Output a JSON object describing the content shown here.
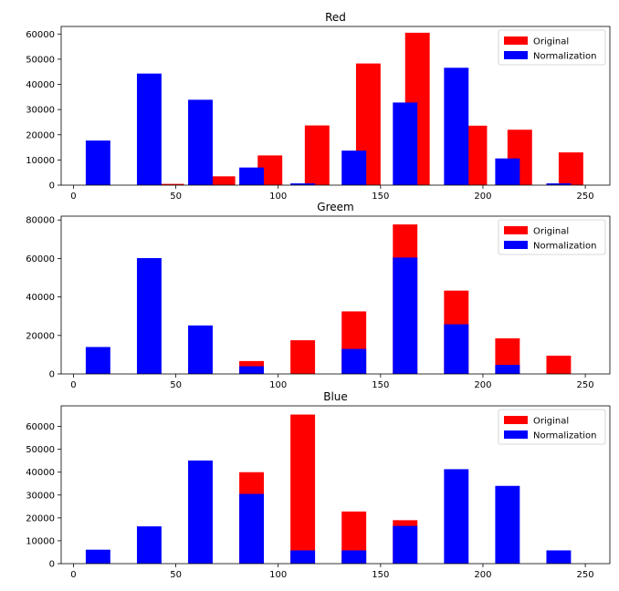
{
  "chart_data": [
    {
      "type": "bar",
      "title": "Red",
      "xlabel": "",
      "ylabel": "",
      "xlim": [
        -6,
        262
      ],
      "ylim": [
        0,
        63000
      ],
      "xticks": [
        0,
        50,
        100,
        150,
        200,
        250
      ],
      "yticks": [
        0,
        10000,
        20000,
        30000,
        40000,
        50000,
        60000
      ],
      "bar_width": 12,
      "legend": {
        "position": "top-right",
        "entries": [
          "Original",
          "Normalization"
        ]
      },
      "series": [
        {
          "name": "Original",
          "color": "#ff0000",
          "x": [
            12,
            48,
            73,
            96,
            119,
            144,
            168,
            196,
            218,
            243
          ],
          "values": [
            0,
            500,
            3500,
            11800,
            23700,
            48300,
            60500,
            23600,
            22000,
            13000
          ]
        },
        {
          "name": "Normalization",
          "color": "#0000ff",
          "x": [
            12,
            37,
            62,
            87,
            112,
            137,
            162,
            187,
            212,
            237
          ],
          "values": [
            17700,
            44300,
            33900,
            7000,
            700,
            13700,
            32800,
            46600,
            10600,
            700
          ]
        }
      ]
    },
    {
      "type": "bar",
      "title": "Greem",
      "xlabel": "",
      "ylabel": "",
      "xlim": [
        -6,
        262
      ],
      "ylim": [
        0,
        82000
      ],
      "xticks": [
        0,
        50,
        100,
        150,
        200,
        250
      ],
      "yticks": [
        0,
        20000,
        40000,
        60000,
        80000
      ],
      "bar_width": 12,
      "legend": {
        "position": "top-right",
        "entries": [
          "Original",
          "Normalization"
        ]
      },
      "series": [
        {
          "name": "Original",
          "color": "#ff0000",
          "x": [
            12,
            37,
            62,
            87,
            112,
            137,
            162,
            187,
            212,
            237
          ],
          "values": [
            0,
            0,
            0,
            6700,
            17500,
            32500,
            77700,
            43300,
            18500,
            9500
          ]
        },
        {
          "name": "Normalization",
          "color": "#0000ff",
          "x": [
            12,
            37,
            62,
            87,
            112,
            137,
            162,
            187,
            212,
            237
          ],
          "values": [
            14000,
            60200,
            25200,
            4000,
            0,
            13000,
            60500,
            25800,
            4700,
            0
          ]
        }
      ]
    },
    {
      "type": "bar",
      "title": "Blue",
      "xlabel": "",
      "ylabel": "",
      "xlim": [
        -6,
        262
      ],
      "ylim": [
        0,
        69000
      ],
      "xticks": [
        0,
        50,
        100,
        150,
        200,
        250
      ],
      "yticks": [
        0,
        10000,
        20000,
        30000,
        40000,
        50000,
        60000
      ],
      "bar_width": 12,
      "legend": {
        "position": "top-right",
        "entries": [
          "Original",
          "Normalization"
        ]
      },
      "series": [
        {
          "name": "Original",
          "color": "#ff0000",
          "x": [
            12,
            37,
            62,
            87,
            112,
            137,
            162,
            187,
            212,
            237
          ],
          "values": [
            0,
            0,
            0,
            40000,
            65200,
            22800,
            19000,
            0,
            0,
            0
          ]
        },
        {
          "name": "Normalization",
          "color": "#0000ff",
          "x": [
            12,
            37,
            62,
            87,
            112,
            137,
            162,
            187,
            212,
            237
          ],
          "values": [
            6100,
            16300,
            45100,
            30500,
            5800,
            5800,
            16500,
            41300,
            34000,
            5800
          ]
        }
      ]
    }
  ]
}
